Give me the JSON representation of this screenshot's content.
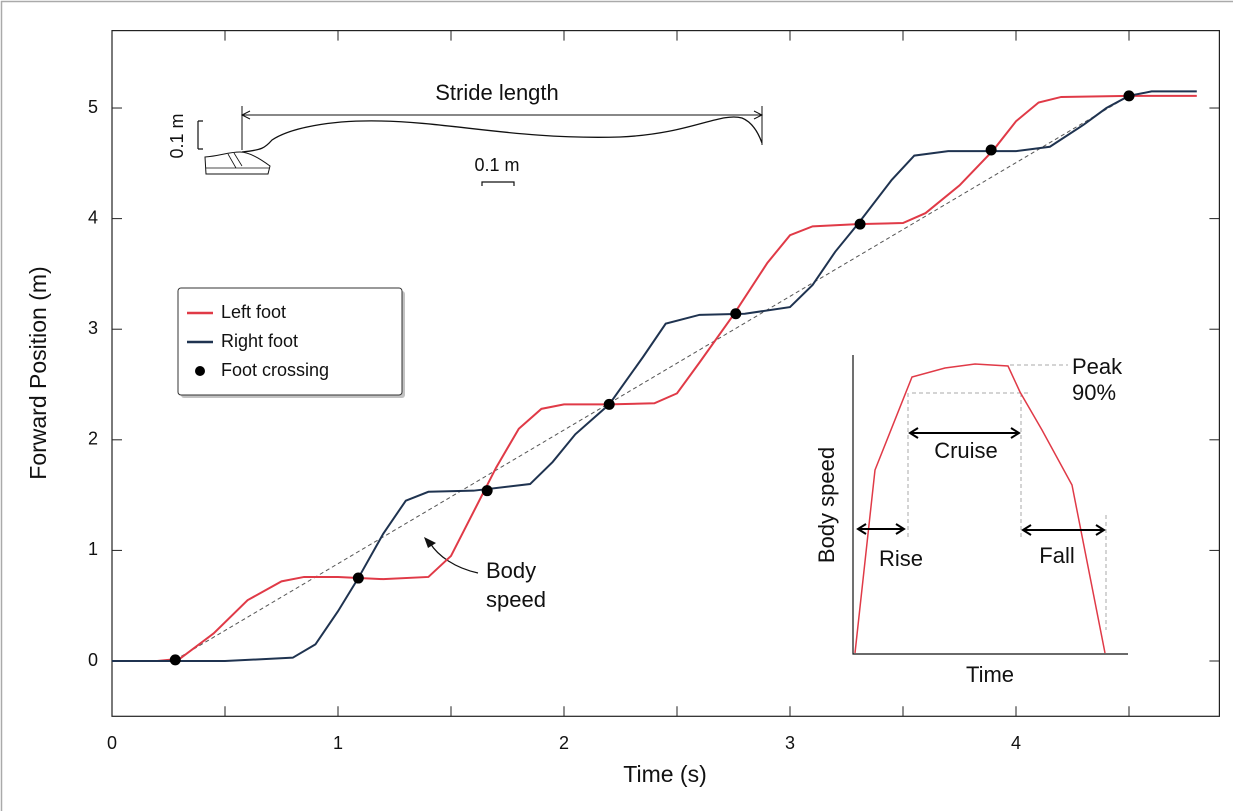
{
  "chart_data": {
    "type": "line",
    "xlabel": "Time (s)",
    "ylabel": "Forward Position (m)",
    "xlim": [
      0,
      4.9
    ],
    "ylim": [
      -0.5,
      5.7
    ],
    "xticks": [
      0,
      1,
      2,
      3,
      4
    ],
    "xminorticks": [
      0.5,
      1.5,
      2.5,
      3.5,
      4.5
    ],
    "yticks": [
      0,
      1,
      2,
      3,
      4,
      5
    ],
    "legend": "upper left",
    "series": [
      {
        "name": "Left foot",
        "color": "#e03a47",
        "x": [
          0,
          0.2,
          0.3,
          0.45,
          0.6,
          0.75,
          0.85,
          1.0,
          1.2,
          1.4,
          1.5,
          1.6,
          1.7,
          1.8,
          1.9,
          2.0,
          2.2,
          2.4,
          2.5,
          2.6,
          2.75,
          2.9,
          3.0,
          3.1,
          3.3,
          3.5,
          3.6,
          3.75,
          3.9,
          4.0,
          4.1,
          4.2,
          4.5,
          4.8
        ],
        "values": [
          0,
          0,
          0.02,
          0.25,
          0.55,
          0.72,
          0.76,
          0.76,
          0.74,
          0.76,
          0.95,
          1.35,
          1.75,
          2.1,
          2.28,
          2.32,
          2.32,
          2.33,
          2.42,
          2.7,
          3.13,
          3.6,
          3.85,
          3.93,
          3.95,
          3.96,
          4.05,
          4.3,
          4.62,
          4.88,
          5.05,
          5.1,
          5.11,
          5.11
        ]
      },
      {
        "name": "Right foot",
        "color": "#1f3350",
        "x": [
          0,
          0.5,
          0.8,
          0.9,
          1.0,
          1.09,
          1.2,
          1.3,
          1.4,
          1.6,
          1.85,
          1.95,
          2.05,
          2.2,
          2.35,
          2.45,
          2.6,
          2.8,
          3.0,
          3.1,
          3.2,
          3.3,
          3.45,
          3.55,
          3.7,
          4.0,
          4.15,
          4.3,
          4.4,
          4.5,
          4.6,
          4.8
        ],
        "values": [
          0,
          0,
          0.03,
          0.15,
          0.45,
          0.75,
          1.15,
          1.45,
          1.53,
          1.54,
          1.6,
          1.8,
          2.05,
          2.32,
          2.75,
          3.05,
          3.13,
          3.14,
          3.2,
          3.4,
          3.7,
          3.95,
          4.35,
          4.57,
          4.61,
          4.61,
          4.65,
          4.85,
          5.0,
          5.11,
          5.15,
          5.15
        ]
      },
      {
        "name": "Foot crossing",
        "type": "scatter",
        "color": "#000000",
        "x": [
          0.28,
          1.09,
          1.66,
          2.2,
          2.76,
          3.31,
          3.89,
          4.5
        ],
        "values": [
          0.01,
          0.75,
          1.54,
          2.32,
          3.14,
          3.95,
          4.62,
          5.11
        ]
      }
    ],
    "reference_line": {
      "x": [
        0.28,
        4.5
      ],
      "values": [
        0.01,
        5.11
      ],
      "color": "#555555"
    },
    "annotation": [
      "Body",
      "speed"
    ],
    "stride_inset": {
      "title": "Stride length",
      "vertical_scale": "0.1 m",
      "horizontal_scale": "0.1 m"
    },
    "speed_inset": {
      "ylabel": "Body speed",
      "xlabel": "Time",
      "peak": "Peak",
      "threshold": "90%",
      "cruise": "Cruise",
      "rise": "Rise",
      "fall": "Fall"
    }
  }
}
